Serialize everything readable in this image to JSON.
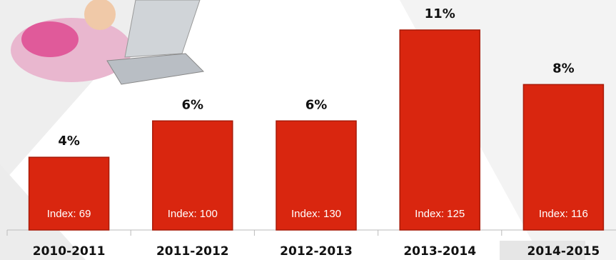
{
  "chart_data": {
    "type": "bar",
    "categories": [
      "2010-2011",
      "2011-2012",
      "2012-2013",
      "2013-2014",
      "2014-2015"
    ],
    "values": [
      4,
      6,
      6,
      11,
      8
    ],
    "value_labels": [
      "4%",
      "6%",
      "6%",
      "11%",
      "8%"
    ],
    "index_labels": [
      "Index: 69",
      "Index: 100",
      "Index: 130",
      "Index: 125",
      "Index: 116"
    ],
    "color": "#d9260f"
  }
}
